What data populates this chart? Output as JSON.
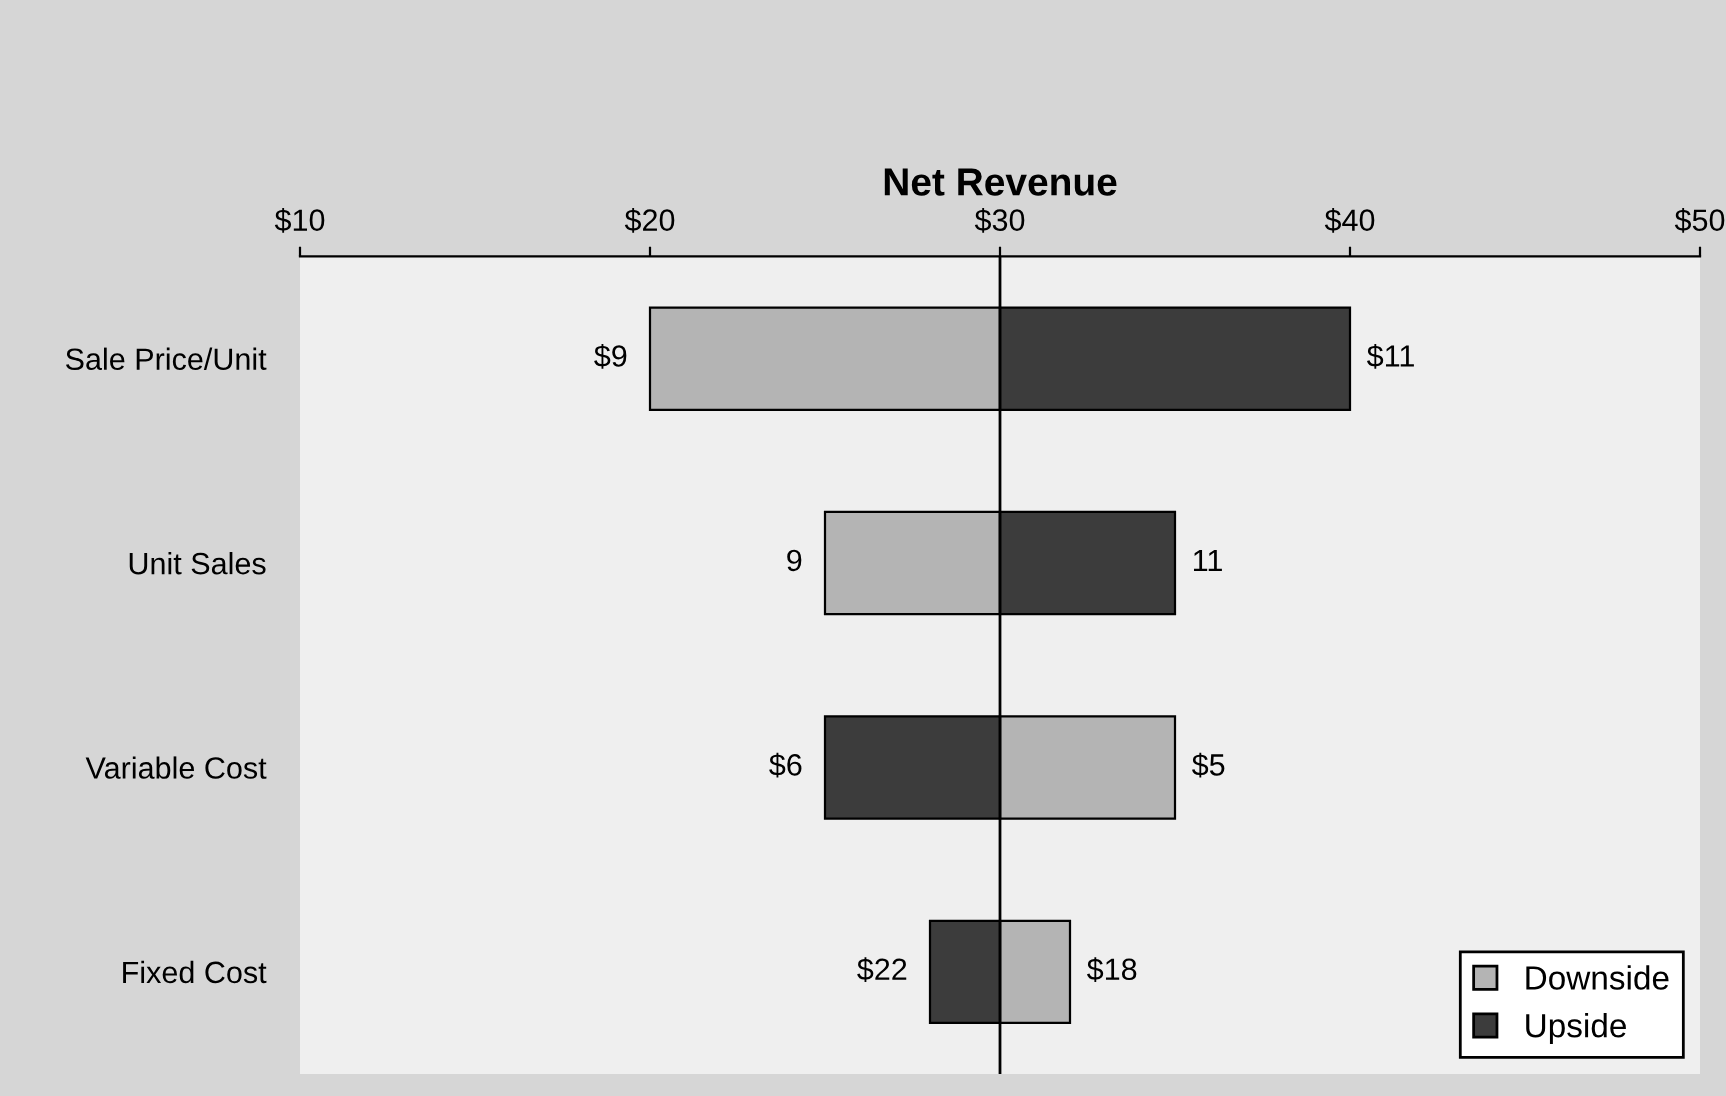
{
  "chart_data": {
    "type": "bar",
    "orientation": "horizontal",
    "title": "Net Revenue",
    "categories": [
      "Sale Price/Unit",
      "Unit Sales",
      "Variable Cost",
      "Fixed Cost"
    ],
    "series": [
      {
        "name": "Downside",
        "color": "#b4b4b4",
        "base": [
          20,
          25,
          30,
          30
        ],
        "values": [
          10,
          5,
          5,
          2
        ]
      },
      {
        "name": "Upside",
        "color": "#3c3c3c",
        "base": [
          30,
          30,
          25,
          28
        ],
        "values": [
          10,
          5,
          5,
          2
        ]
      }
    ],
    "annotations": [
      {
        "text": "$9",
        "x": 20,
        "y": "Sale Price/Unit"
      },
      {
        "text": "$11",
        "x": 40,
        "y": "Sale Price/Unit"
      },
      {
        "text": "9",
        "x": 25,
        "y": "Unit Sales"
      },
      {
        "text": "11",
        "x": 35,
        "y": "Unit Sales"
      },
      {
        "text": "$6",
        "x": 25,
        "y": "Variable Cost"
      },
      {
        "text": "$5",
        "x": 35,
        "y": "Variable Cost"
      },
      {
        "text": "$22",
        "x": 28,
        "y": "Fixed Cost"
      },
      {
        "text": "$18",
        "x": 32,
        "y": "Fixed Cost"
      }
    ],
    "xlim": [
      10,
      50
    ],
    "xticks": [
      {
        "value": 10,
        "label": "$10"
      },
      {
        "value": 20,
        "label": "$20"
      },
      {
        "value": 30,
        "label": "$30"
      },
      {
        "value": 40,
        "label": "$40"
      },
      {
        "value": 50,
        "label": "$50"
      }
    ],
    "ref_lines": [
      {
        "axis": "x",
        "value": 30,
        "color": "#000000"
      }
    ],
    "grid": false,
    "legend": "bottom right"
  }
}
